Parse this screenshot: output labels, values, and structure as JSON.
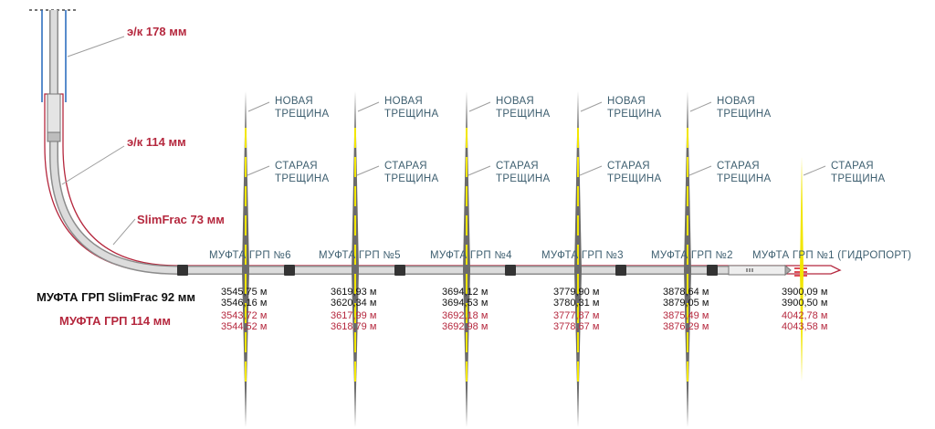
{
  "casing_labels": {
    "ek178": "э/к 178 мм",
    "ek114": "э/к 114 мм",
    "slimfrac": "SlimFrac 73 мм"
  },
  "legend": {
    "sleeve_92": "МУФТА ГРП SlimFrac 92 мм",
    "sleeve_114": "МУФТА ГРП 114 мм"
  },
  "fracture_labels": {
    "new": [
      "НОВАЯ",
      "ТРЕЩИНА"
    ],
    "old": [
      "СТАРАЯ",
      "ТРЕЩИНА"
    ]
  },
  "stages": [
    {
      "sleeve": "МУФТА ГРП №6",
      "depths_92": [
        "3545,75 м",
        "3546,16 м"
      ],
      "depths_114": [
        "3543,72 м",
        "3544,52 м"
      ],
      "has_new": true
    },
    {
      "sleeve": "МУФТА ГРП №5",
      "depths_92": [
        "3619,93 м",
        "3620,34 м"
      ],
      "depths_114": [
        "3617,99 м",
        "3618,79 м"
      ],
      "has_new": true
    },
    {
      "sleeve": "МУФТА ГРП №4",
      "depths_92": [
        "3694,12 м",
        "3694,53 м"
      ],
      "depths_114": [
        "3692,18 м",
        "3692,98 м"
      ],
      "has_new": true
    },
    {
      "sleeve": "МУФТА ГРП №3",
      "depths_92": [
        "3779,90 м",
        "3780,31 м"
      ],
      "depths_114": [
        "3777,87 м",
        "3778,67 м"
      ],
      "has_new": true
    },
    {
      "sleeve": "МУФТА ГРП №2",
      "depths_92": [
        "3878,64 м",
        "3879,05 м"
      ],
      "depths_114": [
        "3875,49 м",
        "3876,29 м"
      ],
      "has_new": true
    },
    {
      "sleeve": "МУФТА ГРП №1 (ГИДРОПОРТ)",
      "depths_92": [
        "3900,09 м",
        "3900,50 м"
      ],
      "depths_114": [
        "4042,78 м",
        "4043,58 м"
      ],
      "has_new": false
    }
  ],
  "colors": {
    "accent_red": "#b5283e",
    "label_slate": "#3e5f70",
    "fracture_yellow": "#f2e600",
    "fracture_gray": "#6b6b6b",
    "pipe_gray": "#d0d0d0",
    "packer_dark": "#333333",
    "casing_blue": "#2f6fbf"
  }
}
